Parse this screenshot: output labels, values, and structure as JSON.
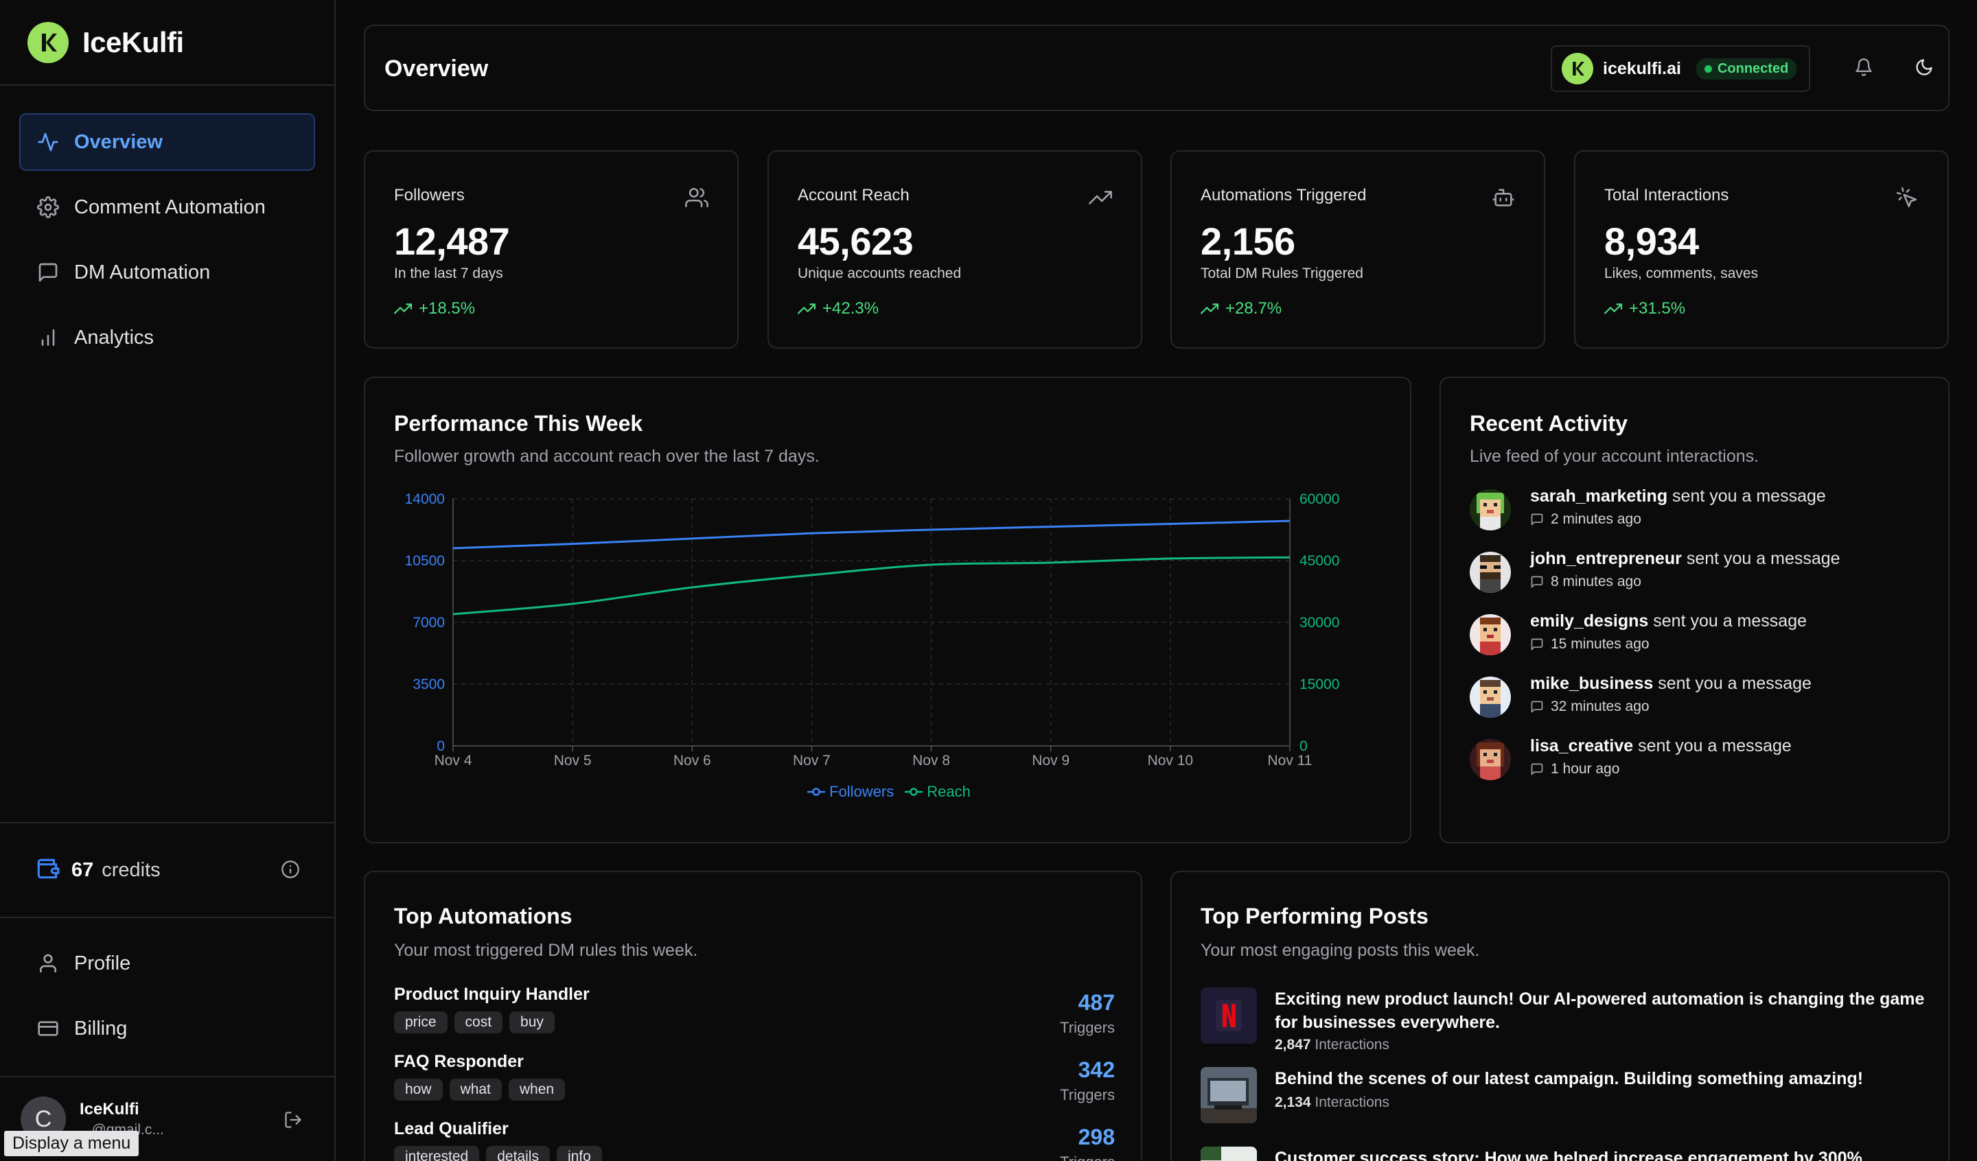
{
  "brand": {
    "name": "IceKulfi",
    "logo_letter": "K"
  },
  "nav": [
    {
      "label": "Overview",
      "icon": "activity-icon",
      "active": true
    },
    {
      "label": "Comment Automation",
      "icon": "gear-icon"
    },
    {
      "label": "DM Automation",
      "icon": "message-square-icon"
    },
    {
      "label": "Analytics",
      "icon": "bar-chart-icon"
    }
  ],
  "credits": {
    "amount": "67",
    "label": "credits"
  },
  "bottom_nav": [
    {
      "label": "Profile",
      "icon": "user-icon"
    },
    {
      "label": "Billing",
      "icon": "credit-card-icon"
    }
  ],
  "user": {
    "initial": "C",
    "name": "IceKulfi",
    "email": "...@gmail.c..."
  },
  "tooltip": "Display a menu",
  "header": {
    "title": "Overview",
    "account": "icekulfi.ai",
    "status": "Connected"
  },
  "stats": [
    {
      "label": "Followers",
      "value": "12,487",
      "sub": "In the last 7 days",
      "change": "+18.5%",
      "icon": "users-icon"
    },
    {
      "label": "Account Reach",
      "value": "45,623",
      "sub": "Unique accounts reached",
      "change": "+42.3%",
      "icon": "trending-up-icon"
    },
    {
      "label": "Automations Triggered",
      "value": "2,156",
      "sub": "Total DM Rules Triggered",
      "change": "+28.7%",
      "icon": "bot-icon"
    },
    {
      "label": "Total Interactions",
      "value": "8,934",
      "sub": "Likes, comments, saves",
      "change": "+31.5%",
      "icon": "pointer-click-icon"
    }
  ],
  "performance": {
    "title": "Performance This Week",
    "desc": "Follower growth and account reach over the last 7 days."
  },
  "chart_data": {
    "type": "line",
    "x": [
      "Nov 4",
      "Nov 5",
      "Nov 6",
      "Nov 7",
      "Nov 8",
      "Nov 9",
      "Nov 10",
      "Nov 11"
    ],
    "series": [
      {
        "name": "Followers",
        "axis": "left",
        "color": "#3b82f6",
        "values": [
          11200,
          11450,
          11750,
          12050,
          12250,
          12420,
          12580,
          12750
        ]
      },
      {
        "name": "Reach",
        "axis": "right",
        "color": "#10b981",
        "values": [
          32000,
          34500,
          38500,
          41500,
          44000,
          44500,
          45500,
          45800
        ]
      }
    ],
    "y_left": {
      "ticks": [
        0,
        3500,
        7000,
        10500,
        14000
      ],
      "ylim": [
        0,
        14000
      ]
    },
    "y_right": {
      "ticks": [
        0,
        15000,
        30000,
        45000,
        60000
      ],
      "ylim": [
        0,
        60000
      ]
    },
    "grid": true,
    "legend": "bottom-center"
  },
  "activity": {
    "title": "Recent Activity",
    "desc": "Live feed of your account interactions.",
    "items": [
      {
        "user": "sarah_marketing",
        "action": " sent you a message",
        "time": "2 minutes ago"
      },
      {
        "user": "john_entrepreneur",
        "action": " sent you a message",
        "time": "8 minutes ago"
      },
      {
        "user": "emily_designs",
        "action": " sent you a message",
        "time": "15 minutes ago"
      },
      {
        "user": "mike_business",
        "action": " sent you a message",
        "time": "32 minutes ago"
      },
      {
        "user": "lisa_creative",
        "action": " sent you a message",
        "time": "1 hour ago"
      }
    ]
  },
  "automations": {
    "title": "Top Automations",
    "desc": "Your most triggered DM rules this week.",
    "unit": "Triggers",
    "items": [
      {
        "name": "Product Inquiry Handler",
        "tags": [
          "price",
          "cost",
          "buy"
        ],
        "count": "487"
      },
      {
        "name": "FAQ Responder",
        "tags": [
          "how",
          "what",
          "when"
        ],
        "count": "342"
      },
      {
        "name": "Lead Qualifier",
        "tags": [
          "interested",
          "details",
          "info"
        ],
        "count": "298"
      }
    ]
  },
  "posts": {
    "title": "Top Performing Posts",
    "desc": "Your most engaging posts this week.",
    "items": [
      {
        "text": "Exciting new product launch! Our AI-powered automation is changing the game for businesses everywhere.",
        "count": "2,847",
        "unit": " Interactions"
      },
      {
        "text": "Behind the scenes of our latest campaign. Building something amazing!",
        "count": "2,134",
        "unit": " Interactions"
      },
      {
        "text": "Customer success story: How we helped increase engagement by 300%",
        "count": "",
        "unit": ""
      }
    ]
  }
}
